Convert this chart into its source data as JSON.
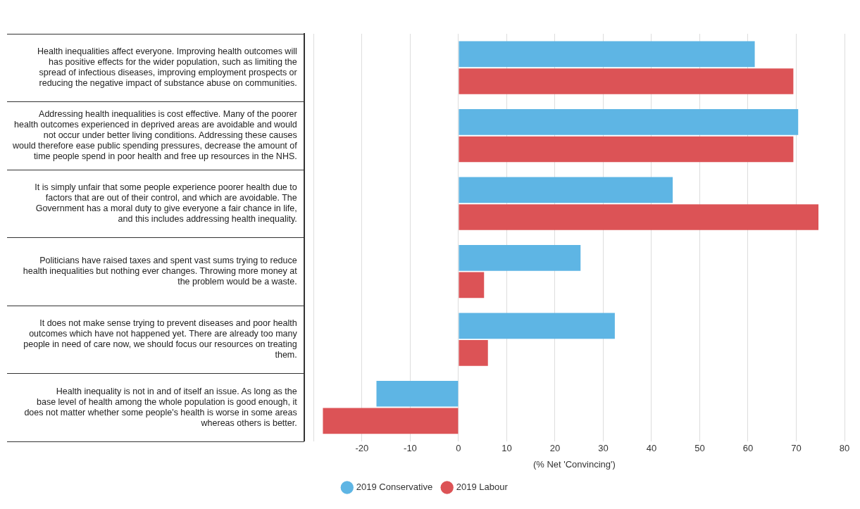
{
  "chart_data": {
    "type": "bar",
    "orientation": "horizontal",
    "xlabel": "(% Net 'Convincing')",
    "categories": [
      "Health inequalities affect everyone. Improving health outcomes will has positive effects for the wider population, such as limiting the spread of infectious diseases, improving employment prospects or reducing the negative impact of substance abuse on communities.",
      "Addressing health inequalities is cost effective. Many of the poorer health outcomes experienced in deprived areas are avoidable and would not occur under better living conditions. Addressing these causes would therefore ease public spending pressures, decrease the amount of time people spend in poor health and free up resources in the NHS.",
      "It is simply unfair that some people experience poorer health due to factors that are out of their control, and which are avoidable. The Government has a moral duty to give everyone a fair chance in life, and this includes addressing health inequality.",
      "Politicians have raised taxes and spent vast sums trying to reduce health inequalities but nothing ever changes. Throwing more money at the problem would be a waste.",
      "It does not make sense trying to prevent diseases and poor health outcomes which have not happened yet. There are already too many people in need of care now, we should focus our resources on treating them.",
      "Health inequality is not in and of itself an issue. As long as the base level of health among the whole population is good enough, it does not matter whether some people's health is worse in some areas whereas others is better."
    ],
    "series": [
      {
        "name": "2019 Conservative",
        "color": "#5eb5e4",
        "values": [
          61.4,
          70.4,
          44.4,
          25.3,
          32.4,
          -17
        ]
      },
      {
        "name": "2019 Labour",
        "color": "#dc5356",
        "values": [
          69.4,
          69.4,
          74.6,
          5.3,
          6.1,
          -28.1
        ]
      }
    ],
    "xlim": [
      -32,
      80
    ],
    "xticks": [
      {
        "value": -30,
        "label": null
      },
      -20,
      -10,
      0,
      10,
      20,
      30,
      40,
      50,
      60,
      70,
      80
    ],
    "grid": "x",
    "legend": "bottom"
  }
}
